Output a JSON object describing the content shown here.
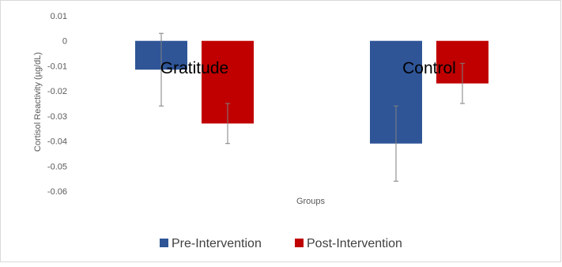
{
  "chart_data": {
    "type": "bar",
    "title": "",
    "xlabel": "Groups",
    "ylabel": "Cortisol Reactivity  (µg/dL)",
    "categories": [
      "Gratitude",
      "Control"
    ],
    "series": [
      {
        "name": "Pre-Intervention",
        "color": "#2f5597",
        "values": [
          -0.0115,
          -0.041
        ],
        "error": [
          0.0145,
          0.015
        ]
      },
      {
        "name": "Post-Intervention",
        "color": "#c00000",
        "values": [
          -0.033,
          -0.017
        ],
        "error": [
          0.008,
          0.008
        ]
      }
    ],
    "ylim": [
      -0.06,
      0.01
    ],
    "yticks": [
      0.01,
      0,
      -0.01,
      -0.02,
      -0.03,
      -0.04,
      -0.05,
      -0.06
    ],
    "ytick_labels": [
      "0.01",
      "0",
      "-0.01",
      "-0.02",
      "-0.03",
      "-0.04",
      "-0.05",
      "-0.06"
    ],
    "grid": false,
    "legend_position": "bottom"
  }
}
